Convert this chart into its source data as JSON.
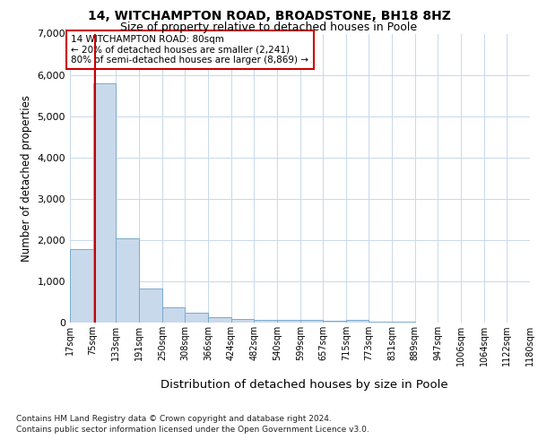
{
  "title1": "14, WITCHAMPTON ROAD, BROADSTONE, BH18 8HZ",
  "title2": "Size of property relative to detached houses in Poole",
  "xlabel": "Distribution of detached houses by size in Poole",
  "ylabel": "Number of detached properties",
  "footnote1": "Contains HM Land Registry data © Crown copyright and database right 2024.",
  "footnote2": "Contains public sector information licensed under the Open Government Licence v3.0.",
  "annotation_line1": "14 WITCHAMPTON ROAD: 80sqm",
  "annotation_line2": "← 20% of detached houses are smaller (2,241)",
  "annotation_line3": "80% of semi-detached houses are larger (8,869) →",
  "bar_edges": [
    17,
    75,
    133,
    191,
    250,
    308,
    366,
    424,
    482,
    540,
    599,
    657,
    715,
    773,
    831,
    889,
    947,
    1006,
    1064,
    1122,
    1180
  ],
  "bar_heights": [
    1780,
    5800,
    2050,
    830,
    370,
    240,
    130,
    90,
    70,
    65,
    55,
    45,
    65,
    20,
    15,
    10,
    5,
    5,
    3,
    2,
    2
  ],
  "property_size": 80,
  "bar_color": "#c9d9ec",
  "bar_edge_color": "#7aaacb",
  "vline_color": "#cc0000",
  "annotation_box_color": "#cc0000",
  "background_color": "#ffffff",
  "grid_color": "#c8d8ec",
  "ylim": [
    0,
    7000
  ],
  "yticks": [
    0,
    1000,
    2000,
    3000,
    4000,
    5000,
    6000,
    7000
  ]
}
